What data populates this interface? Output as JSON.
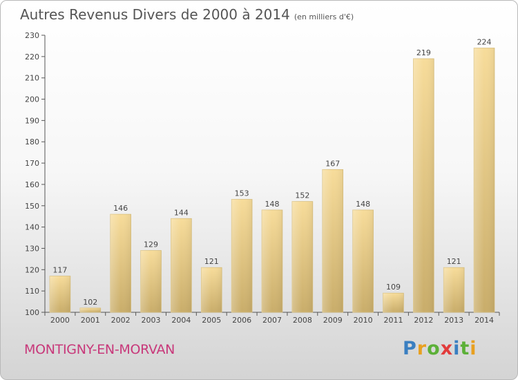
{
  "header": {
    "title": "Autres Revenus Divers de 2000 à 2014",
    "subtitle": "(en milliers d'€)"
  },
  "footer": {
    "commune": "MONTIGNY-EN-MORVAN",
    "logo": {
      "letters": [
        "P",
        "r",
        "o",
        "x",
        "i",
        "t",
        "i"
      ],
      "colors": [
        "#3a7fc1",
        "#e8a020",
        "#5cb038",
        "#e23b3b",
        "#3a7fc1",
        "#5cb038",
        "#e8a020"
      ]
    }
  },
  "chart_data": {
    "type": "bar",
    "title": "Autres Revenus Divers de 2000 à 2014",
    "categories": [
      "2000",
      "2001",
      "2002",
      "2003",
      "2004",
      "2005",
      "2006",
      "2007",
      "2008",
      "2009",
      "2010",
      "2011",
      "2012",
      "2013",
      "2014"
    ],
    "values": [
      117,
      102,
      146,
      129,
      144,
      121,
      153,
      148,
      152,
      167,
      148,
      109,
      219,
      121,
      224
    ],
    "ylim": [
      100,
      230
    ],
    "yticks": [
      100,
      110,
      120,
      130,
      140,
      150,
      160,
      170,
      180,
      190,
      200,
      210,
      220,
      230
    ],
    "grid": false,
    "colors": {
      "bar_light": "#f7dc9a",
      "bar_dark": "#c9ad6a",
      "axis": "#555555",
      "text": "#444444"
    }
  }
}
